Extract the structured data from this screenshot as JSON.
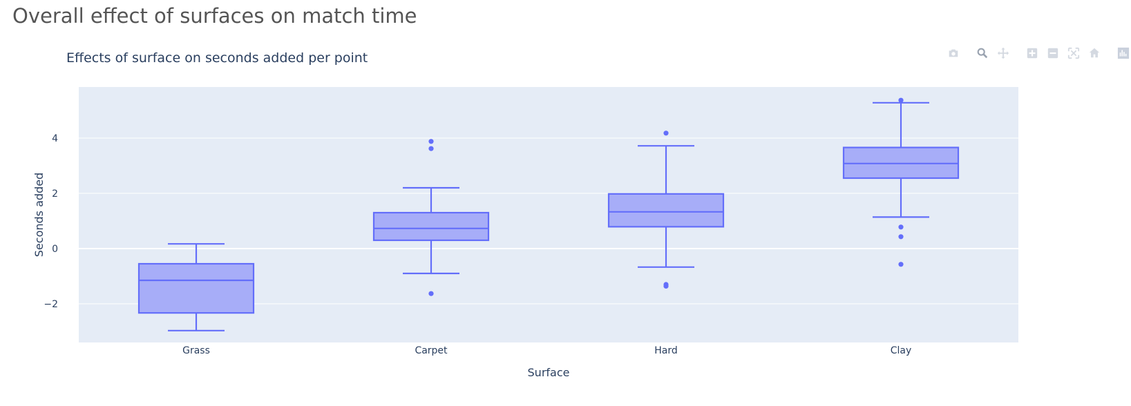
{
  "page": {
    "heading": "Overall effect of surfaces on match time"
  },
  "modebar": [
    {
      "icon": "camera-icon"
    },
    {
      "icon": "zoom-icon"
    },
    {
      "icon": "pan-icon"
    },
    {
      "icon": "zoom-in-icon"
    },
    {
      "icon": "zoom-out-icon"
    },
    {
      "icon": "autoscale-icon"
    },
    {
      "icon": "reset-axes-icon"
    },
    {
      "icon": "plotly-logo-icon"
    }
  ],
  "chart_data": {
    "type": "box",
    "title": "Effects of surface on seconds added per point",
    "xlabel": "Surface",
    "ylabel": "Seconds added",
    "ylim": [
      -3.4,
      5.85
    ],
    "yticks": [
      -2,
      0,
      2,
      4
    ],
    "ytick_labels": [
      "−2",
      "0",
      "2",
      "4"
    ],
    "categories": [
      "Grass",
      "Carpet",
      "Hard",
      "Clay"
    ],
    "grid": true,
    "colors": {
      "box_line": "#636efa",
      "box_fill": "#a7adf8",
      "plot_bg": "#e5ecf6",
      "grid": "#ffffff",
      "text": "#2a3f5f"
    },
    "boxes": [
      {
        "category": "Grass",
        "lower_fence": -2.97,
        "q1": -2.33,
        "median": -1.15,
        "q3": -0.55,
        "upper_fence": 0.17,
        "outliers": []
      },
      {
        "category": "Carpet",
        "lower_fence": -0.9,
        "q1": 0.3,
        "median": 0.73,
        "q3": 1.3,
        "upper_fence": 2.2,
        "outliers": [
          3.88,
          3.62,
          -1.63
        ]
      },
      {
        "category": "Hard",
        "lower_fence": -0.67,
        "q1": 0.79,
        "median": 1.33,
        "q3": 1.98,
        "upper_fence": 3.72,
        "outliers": [
          4.18,
          -1.3,
          -1.36
        ]
      },
      {
        "category": "Clay",
        "lower_fence": 1.14,
        "q1": 2.55,
        "median": 3.08,
        "q3": 3.66,
        "upper_fence": 5.28,
        "outliers": [
          5.37,
          0.78,
          0.43,
          -0.57
        ]
      }
    ]
  }
}
